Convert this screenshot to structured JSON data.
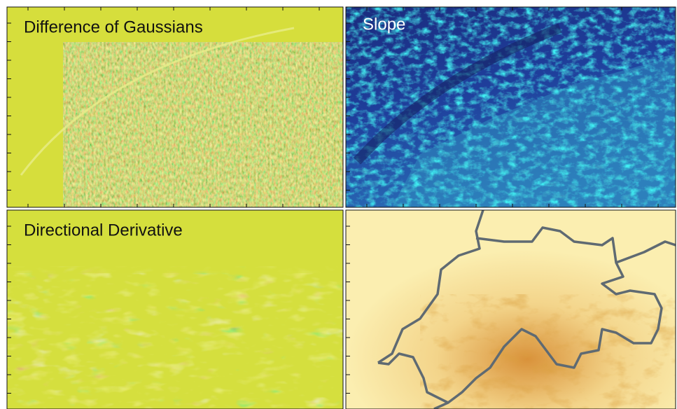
{
  "panels": [
    {
      "title": "Difference of Gaussians"
    },
    {
      "title": "Slope"
    },
    {
      "title": "Directional Derivative"
    }
  ]
}
